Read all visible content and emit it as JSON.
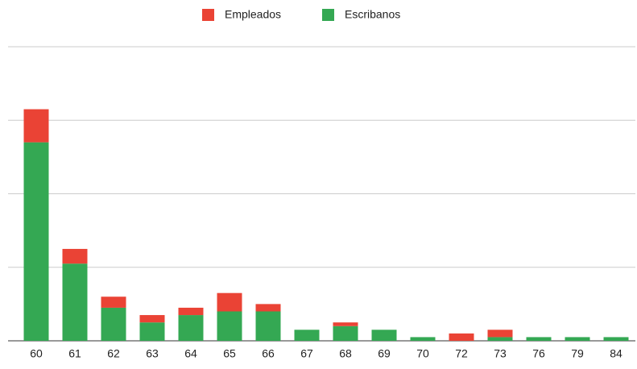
{
  "chart_data": {
    "type": "bar",
    "stacked": true,
    "categories": [
      "60",
      "61",
      "62",
      "63",
      "64",
      "65",
      "66",
      "67",
      "68",
      "69",
      "70",
      "72",
      "73",
      "76",
      "79",
      "84"
    ],
    "series": [
      {
        "name": "Empleados",
        "color": "#ea4335",
        "values": [
          9,
          4,
          3,
          2,
          2,
          5,
          2,
          0,
          1,
          0,
          0,
          2,
          2,
          0,
          0,
          0
        ]
      },
      {
        "name": "Escribanos",
        "color": "#34a853",
        "values": [
          54,
          21,
          9,
          5,
          7,
          8,
          8,
          3,
          4,
          3,
          1,
          0,
          1,
          1,
          1,
          1
        ]
      }
    ],
    "ylim": [
      0,
      80
    ],
    "yticks": [
      0,
      20,
      40,
      60,
      80
    ],
    "grid": true,
    "legend": "top"
  }
}
